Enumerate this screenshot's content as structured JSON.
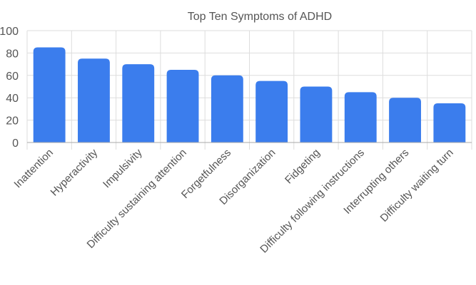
{
  "chart_data": {
    "type": "bar",
    "title": "Top Ten Symptoms of ADHD",
    "categories": [
      "Inattention",
      "Hyperactivity",
      "Impulsivity",
      "Difficulty sustaining attention",
      "Forgetfulness",
      "Disorganization",
      "Fidgeting",
      "Difficulty following instructions",
      "Interrupting others",
      "Difficulty waiting turn"
    ],
    "values": [
      85,
      75,
      70,
      65,
      60,
      55,
      50,
      45,
      40,
      35
    ],
    "ylim": [
      0,
      100
    ],
    "yticks": [
      "0",
      "20",
      "40",
      "60",
      "80",
      "100"
    ],
    "grid": true,
    "bar_color": "#3b7ded"
  }
}
